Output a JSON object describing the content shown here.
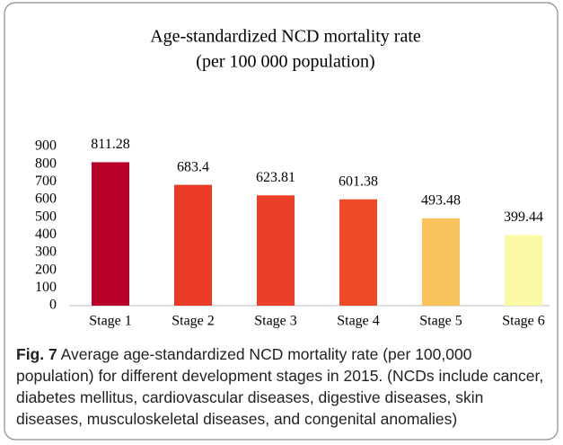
{
  "chart_data": {
    "type": "bar",
    "title": "Age-standardized NCD mortality rate",
    "subtitle": "(per 100 000 population)",
    "categories": [
      "Stage 1",
      "Stage 2",
      "Stage 3",
      "Stage 4",
      "Stage 5",
      "Stage 6"
    ],
    "values": [
      811.28,
      683.4,
      623.81,
      601.38,
      493.48,
      399.44
    ],
    "colors": [
      "#b8002a",
      "#e83a26",
      "#ec3f27",
      "#ee4a26",
      "#fac25b",
      "#fbf9a4"
    ],
    "ylim": [
      0,
      900
    ],
    "yticks": [
      0,
      100,
      200,
      300,
      400,
      500,
      600,
      700,
      800,
      900
    ],
    "grid": false
  },
  "caption": {
    "label": "Fig. 7",
    "text": "Average age-standardized NCD mortality rate (per 100,000 population) for different development stages in 2015. (NCDs include cancer, diabetes mellitus, cardiovascular diseases, digestive diseases, skin diseases, musculoskeletal diseases, and congenital anomalies)"
  }
}
